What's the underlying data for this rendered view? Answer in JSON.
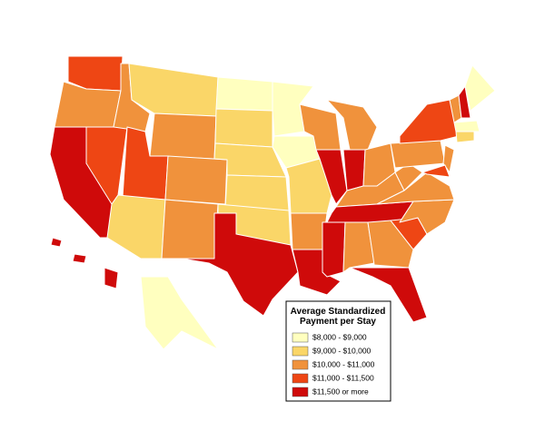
{
  "legend": {
    "title": [
      "Average Standardized",
      "Payment per Stay"
    ],
    "entries": [
      {
        "label": "$8,000 - $9,000",
        "color": "#ffffbf"
      },
      {
        "label": "$9,000 - $10,000",
        "color": "#fad668"
      },
      {
        "label": "$10,000 - $11,000",
        "color": "#f0923c"
      },
      {
        "label": "$11,000 - $11,500",
        "color": "#ee4614"
      },
      {
        "label": "$11,500 or more",
        "color": "#cf0a0a"
      }
    ]
  }
}
